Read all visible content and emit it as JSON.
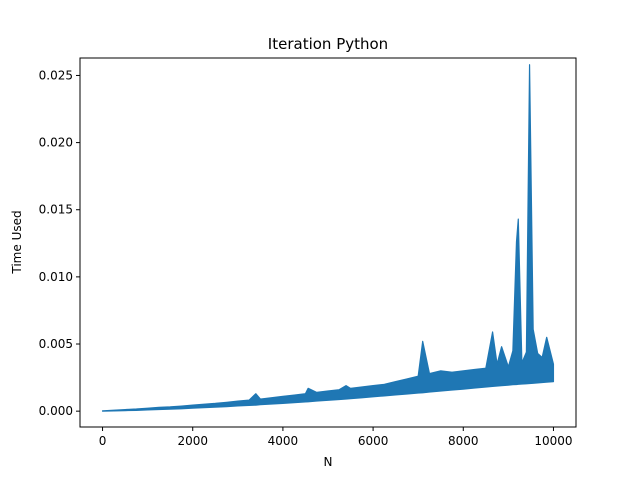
{
  "chart_data": {
    "type": "line",
    "title": "Iteration Python",
    "xlabel": "N",
    "ylabel": "Time Used",
    "xlim": [
      -500,
      10500
    ],
    "ylim": [
      -0.00118,
      0.0263
    ],
    "xticks": [
      {
        "value": 0,
        "label": "0"
      },
      {
        "value": 2000,
        "label": "2000"
      },
      {
        "value": 4000,
        "label": "4000"
      },
      {
        "value": 6000,
        "label": "6000"
      },
      {
        "value": 8000,
        "label": "8000"
      },
      {
        "value": 10000,
        "label": "10000"
      }
    ],
    "yticks": [
      {
        "value": 0.0,
        "label": "0.000"
      },
      {
        "value": 0.005,
        "label": "0.005"
      },
      {
        "value": 0.01,
        "label": "0.010"
      },
      {
        "value": 0.015,
        "label": "0.015"
      },
      {
        "value": 0.02,
        "label": "0.020"
      },
      {
        "value": 0.025,
        "label": "0.025"
      }
    ],
    "grid": false,
    "legend": "none",
    "series": [
      {
        "color": "#1f77b4",
        "x": [
          0,
          250,
          500,
          750,
          1000,
          1250,
          1500,
          1750,
          2000,
          2250,
          2500,
          2750,
          3000,
          3250,
          3400,
          3500,
          3750,
          4000,
          4250,
          4500,
          4560,
          4750,
          5000,
          5250,
          5400,
          5500,
          5750,
          6000,
          6250,
          6500,
          6750,
          7000,
          7100,
          7250,
          7500,
          7750,
          8000,
          8250,
          8500,
          8650,
          8750,
          8850,
          9000,
          9100,
          9180,
          9220,
          9300,
          9400,
          9470,
          9550,
          9650,
          9750,
          9850,
          10000
        ],
        "lower": [
          0.0,
          2e-05,
          4e-05,
          6e-05,
          9e-05,
          0.00012,
          0.00015,
          0.00018,
          0.00022,
          0.00026,
          0.0003,
          0.00034,
          0.00039,
          0.00043,
          0.00045,
          0.00048,
          0.00053,
          0.00058,
          0.00063,
          0.00069,
          0.0007,
          0.00075,
          0.00081,
          0.00087,
          0.0009,
          0.00093,
          0.001,
          0.00107,
          0.00114,
          0.00121,
          0.00128,
          0.00135,
          0.00137,
          0.00142,
          0.0015,
          0.00157,
          0.00164,
          0.00172,
          0.0018,
          0.00184,
          0.00187,
          0.0019,
          0.00194,
          0.00197,
          0.00198,
          0.002,
          0.00202,
          0.00204,
          0.00206,
          0.00208,
          0.0021,
          0.00213,
          0.00216,
          0.0022
        ],
        "upper": [
          2e-05,
          7e-05,
          0.00012,
          0.00016,
          0.00022,
          0.00028,
          0.00032,
          0.00038,
          0.00045,
          0.00052,
          0.00058,
          0.00066,
          0.00075,
          0.00082,
          0.0013,
          0.0009,
          0.001,
          0.0011,
          0.0012,
          0.0013,
          0.0017,
          0.0014,
          0.0015,
          0.0016,
          0.0019,
          0.0017,
          0.0018,
          0.0019,
          0.002,
          0.0022,
          0.0024,
          0.0026,
          0.0052,
          0.0028,
          0.003,
          0.0029,
          0.003,
          0.0031,
          0.0032,
          0.0059,
          0.0035,
          0.0048,
          0.0033,
          0.0045,
          0.0126,
          0.0143,
          0.0036,
          0.0044,
          0.0258,
          0.0061,
          0.0043,
          0.004,
          0.0055,
          0.0035
        ]
      }
    ]
  }
}
